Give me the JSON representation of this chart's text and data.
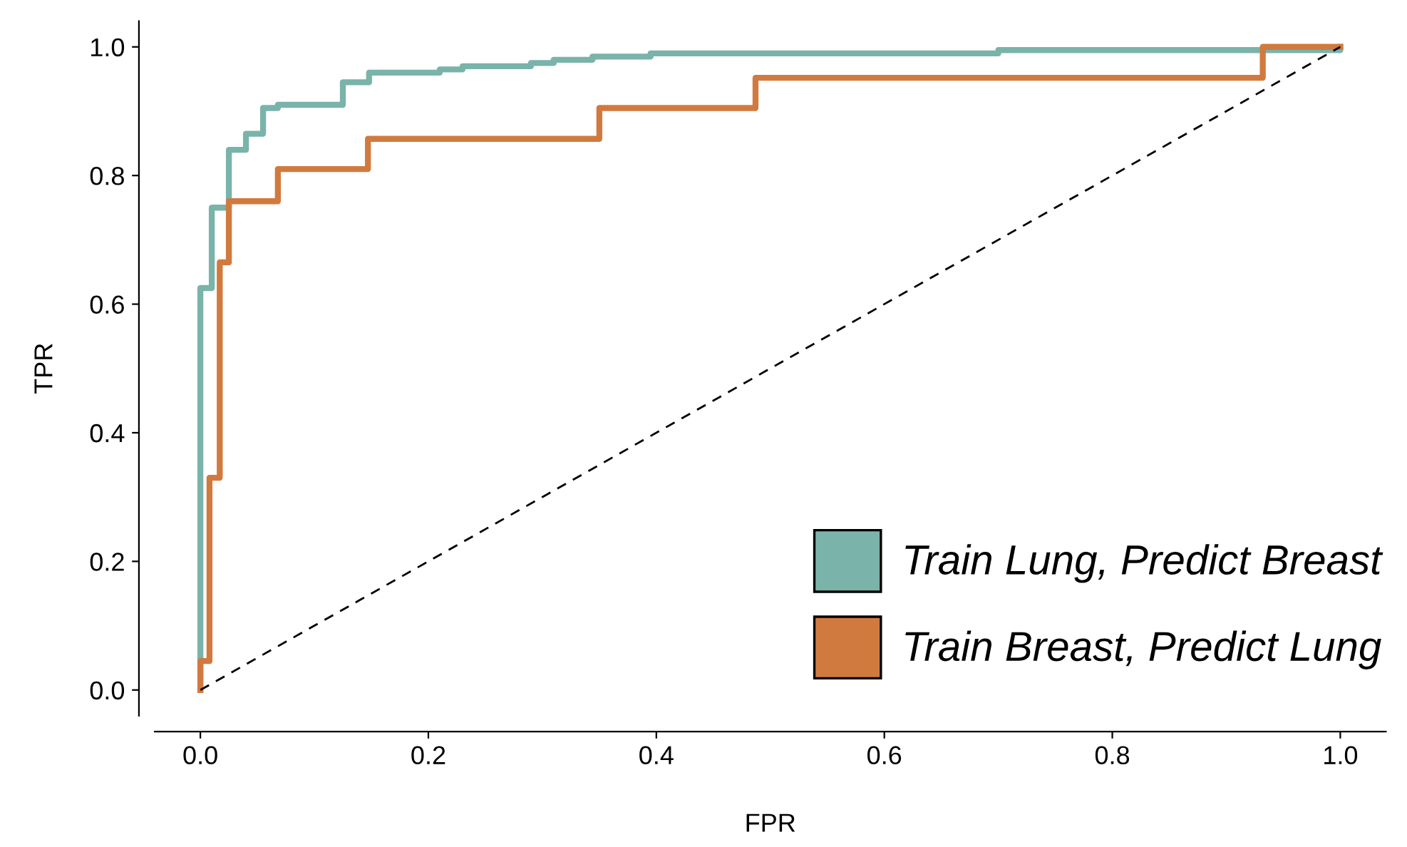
{
  "chart_data": {
    "type": "step",
    "xlabel": "FPR",
    "ylabel": "TPR",
    "xlim": [
      -0.04,
      1.04
    ],
    "ylim": [
      -0.04,
      1.04
    ],
    "xticks": [
      {
        "value": 0,
        "label": "0.0"
      },
      0.2,
      0.4,
      0.6,
      0.8,
      {
        "value": 1,
        "label": "1.0"
      }
    ],
    "yticks": [
      {
        "value": 0,
        "label": "0.0"
      },
      0.2,
      0.4,
      0.6,
      0.8,
      {
        "value": 1,
        "label": "1.0"
      }
    ],
    "grid": false,
    "legend": "bottom right",
    "series": [
      {
        "name": "Train Lung, Predict Breast",
        "color": "#7ab3aa",
        "x": [
          0,
          0,
          0.01,
          0.025,
          0.04,
          0.055,
          0.068,
          0.125,
          0.148,
          0.21,
          0.23,
          0.29,
          0.31,
          0.344,
          0.395,
          0.7,
          1.0
        ],
        "values": [
          0,
          0.625,
          0.75,
          0.84,
          0.865,
          0.905,
          0.91,
          0.945,
          0.96,
          0.965,
          0.97,
          0.975,
          0.98,
          0.985,
          0.99,
          0.995,
          1.0
        ]
      },
      {
        "name": "Train Breast, Predict Lung",
        "color": "#d17a3f",
        "x": [
          0,
          0,
          0.008,
          0.017,
          0.025,
          0.068,
          0.147,
          0.35,
          0.487,
          0.932,
          1.0
        ],
        "values": [
          0,
          0.045,
          0.33,
          0.665,
          0.76,
          0.81,
          0.857,
          0.905,
          0.952,
          1.0,
          1.0
        ]
      },
      {
        "type": "line",
        "color": "#000000",
        "line_style": "dashed",
        "x": [
          0,
          1
        ],
        "values": [
          0,
          1
        ]
      }
    ]
  }
}
